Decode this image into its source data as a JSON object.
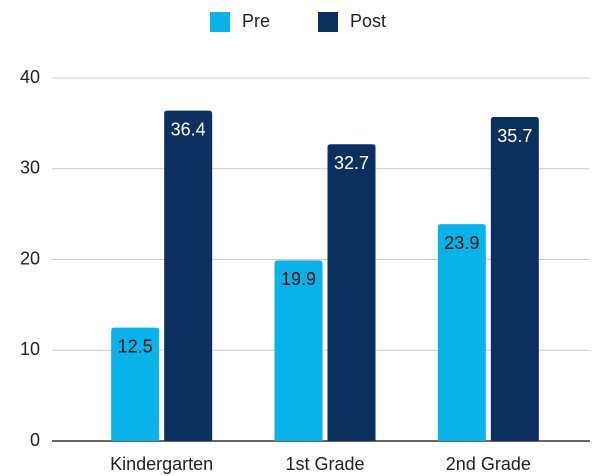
{
  "chart_data": {
    "type": "bar",
    "categories": [
      "Kindergarten",
      "1st Grade",
      "2nd Grade"
    ],
    "series": [
      {
        "name": "Pre",
        "color": "#0ab2ea",
        "values": [
          12.5,
          19.9,
          23.9
        ]
      },
      {
        "name": "Post",
        "color": "#0b3060",
        "values": [
          36.4,
          32.7,
          35.7
        ]
      }
    ],
    "ylim": [
      0,
      40
    ],
    "yticks": [
      0,
      10,
      20,
      30,
      40
    ],
    "grid": true,
    "legend": "top"
  }
}
